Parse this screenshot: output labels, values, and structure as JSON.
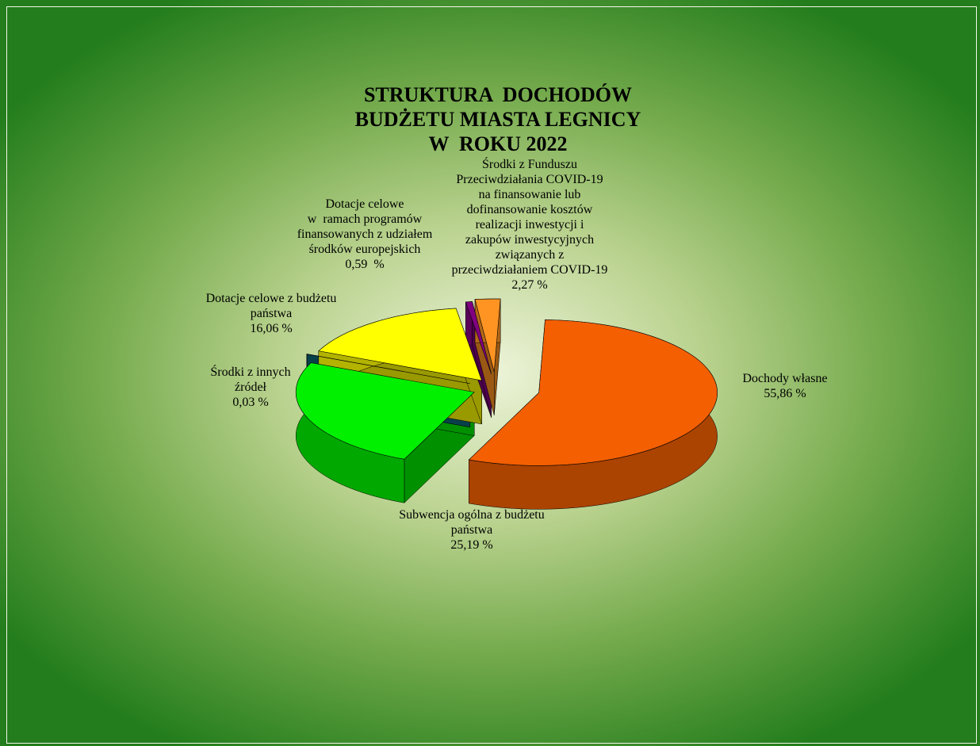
{
  "chart_data": {
    "type": "pie",
    "title": "STRUKTURA  DOCHODÓW\nBUDŻETU MIASTA LEGNICY\nW  ROKU 2022",
    "categories": [
      "Dochody własne",
      "Subwencja ogólna z budżetu\npaństwa",
      "Środki z innych\nźródeł",
      "Dotacje celowe z budżetu\npaństwa",
      "Dotacje celowe\nw  ramach programów\nfinansowanych z udziałem\nśrodków europejskich",
      "Środki z Funduszu\nPrzeciwdziałania COVID-19\nna finansowanie lub\ndofinansowanie kosztów\nrealizacji inwestycji i\nzakupów inwestycyjnych\nzwiązanych z\nprzeciwdziałaniem COVID-19"
    ],
    "values": [
      55.86,
      25.19,
      0.03,
      16.06,
      0.59,
      2.27
    ],
    "value_labels": [
      "55,86 %",
      "25,19 %",
      "0,03 %",
      "16,06 %",
      "0,59  %",
      "2,27 %"
    ],
    "colors": [
      "#f45f02",
      "#00f000",
      "#0d6b7c",
      "#ffff00",
      "#800080",
      "#ff9422"
    ]
  }
}
